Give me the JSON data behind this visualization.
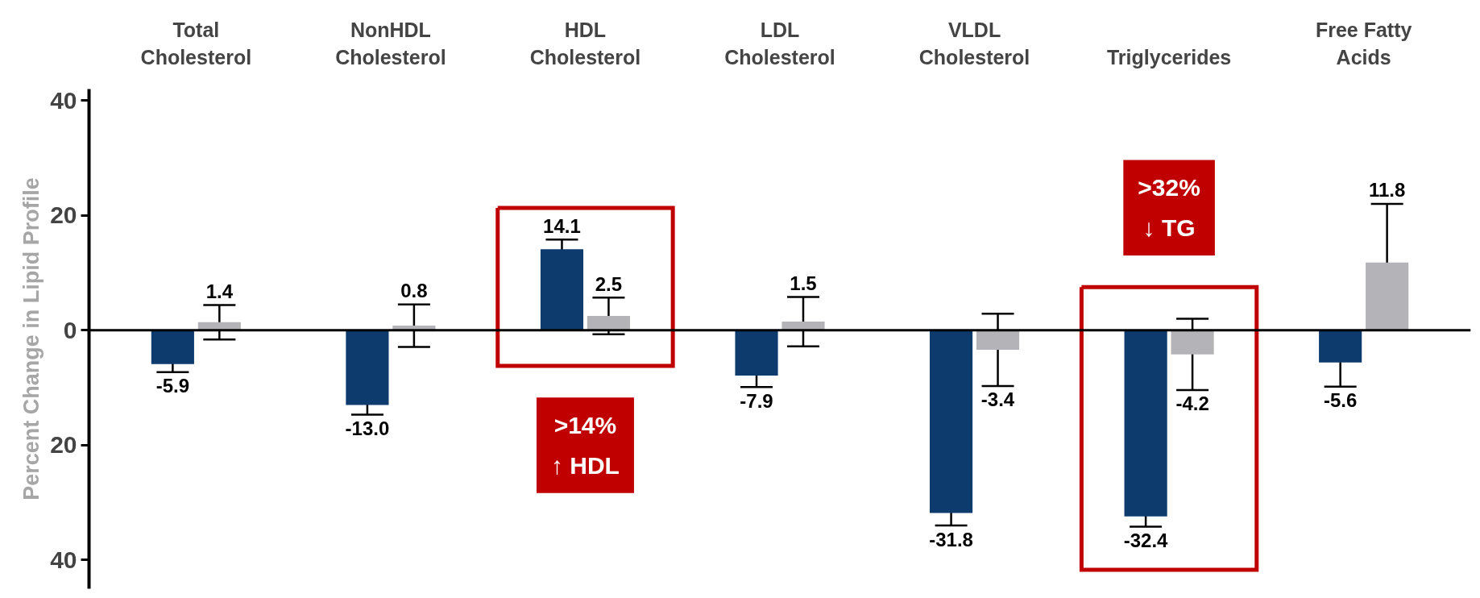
{
  "chart_data": {
    "type": "bar",
    "ylabel": "Percent Change in Lipid Profile",
    "categories": [
      "Total\nCholesterol",
      "NonHDL\nCholesterol",
      "HDL\nCholesterol",
      "LDL\nCholesterol",
      "VLDL\nCholesterol",
      "Triglycerides",
      "Free Fatty\nAcids"
    ],
    "series": [
      {
        "color": "#0d3b6e",
        "values": [
          -5.9,
          -13.0,
          14.1,
          -7.9,
          -31.8,
          -32.4,
          -5.6
        ],
        "errors": [
          1.4,
          1.7,
          1.7,
          2.0,
          2.2,
          1.8,
          4.2
        ],
        "value_labels": [
          "-5.9",
          "-13.0",
          "14.1",
          "-7.9",
          "-31.8",
          "-32.4",
          "-5.6"
        ]
      },
      {
        "color": "#b4b4b8",
        "values": [
          1.4,
          0.8,
          2.5,
          1.5,
          -3.4,
          -4.2,
          11.8
        ],
        "errors": [
          3.0,
          3.7,
          3.2,
          4.3,
          6.3,
          6.2,
          10.2
        ],
        "value_labels": [
          "1.4",
          "0.8",
          "2.5",
          "1.5",
          "-3.4",
          "-4.2",
          "11.8"
        ]
      }
    ],
    "ylim": [
      -45,
      42
    ],
    "yticks": [
      {
        "value": -40,
        "label": "40"
      },
      {
        "value": -20,
        "label": "20"
      },
      0,
      20,
      40
    ],
    "grid": false,
    "ref_lines": [
      {
        "axis": "y",
        "value": 0,
        "color": "#000000"
      }
    ],
    "bands": [
      {
        "axis": "x",
        "from": "HDL\nCholesterol",
        "to": "HDL\nCholesterol",
        "label": ">14%\n↑ HDL",
        "color": "#c00000"
      },
      {
        "axis": "x",
        "from": "Triglycerides",
        "to": "Triglycerides",
        "label": ">32%\n↓ TG",
        "color": "#c00000"
      }
    ]
  }
}
